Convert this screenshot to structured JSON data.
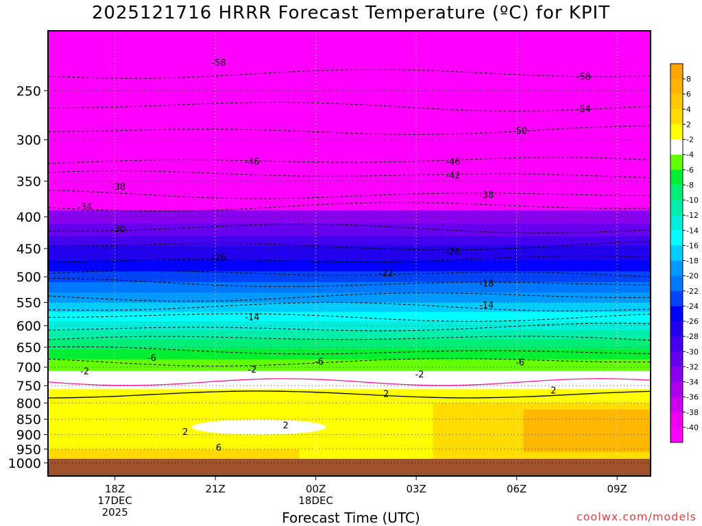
{
  "title": "2025121716 HRRR Forecast Temperature (ºC) for KPIT",
  "credit": "coolwx.com/models",
  "colors": {
    "background": "#ffffff",
    "ground": "#a0522d",
    "contour": "#000000",
    "freezing_line": "#ff1493"
  },
  "chart_data": {
    "type": "heatmap",
    "title": "2025121716 HRRR Forecast Temperature (ºC) for KPIT",
    "xlabel": "Forecast Time (UTC)",
    "ylabel": "",
    "x_unit": "hours from 2025-12-17 16Z",
    "xlim": [
      16,
      34
    ],
    "x_ticks": [
      {
        "x": 18,
        "lines": [
          "18Z",
          "17DEC",
          "2025"
        ]
      },
      {
        "x": 21,
        "lines": [
          "21Z"
        ]
      },
      {
        "x": 24,
        "lines": [
          "00Z",
          "18DEC"
        ]
      },
      {
        "x": 27,
        "lines": [
          "03Z"
        ]
      },
      {
        "x": 30,
        "lines": [
          "06Z"
        ]
      },
      {
        "x": 33,
        "lines": [
          "09Z"
        ]
      }
    ],
    "y_ticks": [
      250,
      300,
      350,
      400,
      450,
      500,
      550,
      600,
      650,
      700,
      750,
      800,
      850,
      900,
      950,
      1000
    ],
    "y_unit": "hPa",
    "grid": true,
    "colorbar": {
      "labels": [
        "8",
        "6",
        "4",
        "2",
        "-2",
        "-4",
        "-6",
        "-8",
        "-10",
        "-12",
        "-14",
        "-16",
        "-18",
        "-20",
        "-22",
        "-24",
        "-26",
        "-28",
        "-30",
        "-32",
        "-34",
        "-36",
        "-38",
        "-40"
      ],
      "colors": [
        "#ffa500",
        "#ffb400",
        "#ffc800",
        "#ffdc00",
        "#ffff00",
        "#ffffff",
        "#66ff00",
        "#00ee33",
        "#00ee77",
        "#00eeaa",
        "#00eedd",
        "#00ffff",
        "#00ccff",
        "#0099ff",
        "#0077ff",
        "#0044ff",
        "#0000ff",
        "#2200ee",
        "#4400ee",
        "#6600ee",
        "#8800ee",
        "#aa00ee",
        "#cc00ee",
        "#ee00ee",
        "#ff00ff"
      ]
    },
    "temperature_bands": [
      {
        "p_top": 200,
        "p_bottom": 390,
        "temp": -40
      },
      {
        "p_top": 390,
        "p_bottom": 410,
        "temp": -34
      },
      {
        "p_top": 410,
        "p_bottom": 430,
        "temp": -30
      },
      {
        "p_top": 430,
        "p_bottom": 445,
        "temp": -28
      },
      {
        "p_top": 445,
        "p_bottom": 470,
        "temp": -26
      },
      {
        "p_top": 470,
        "p_bottom": 490,
        "temp": -24
      },
      {
        "p_top": 490,
        "p_bottom": 510,
        "temp": -22
      },
      {
        "p_top": 510,
        "p_bottom": 530,
        "temp": -20
      },
      {
        "p_top": 530,
        "p_bottom": 550,
        "temp": -18
      },
      {
        "p_top": 550,
        "p_bottom": 570,
        "temp": -16
      },
      {
        "p_top": 570,
        "p_bottom": 590,
        "temp": -14
      },
      {
        "p_top": 590,
        "p_bottom": 610,
        "temp": -12
      },
      {
        "p_top": 610,
        "p_bottom": 630,
        "temp": -10
      },
      {
        "p_top": 630,
        "p_bottom": 655,
        "temp": -8
      },
      {
        "p_top": 655,
        "p_bottom": 680,
        "temp": -6
      },
      {
        "p_top": 680,
        "p_bottom": 710,
        "temp": -4
      },
      {
        "p_top": 710,
        "p_bottom": 760,
        "temp": 0
      },
      {
        "p_top": 760,
        "p_bottom": 1050,
        "temp": 2
      }
    ],
    "contour_labels": [
      {
        "x": 21.1,
        "p": 225,
        "text": "-58"
      },
      {
        "x": 32.0,
        "p": 237,
        "text": "-58"
      },
      {
        "x": 32.0,
        "p": 267,
        "text": "-54"
      },
      {
        "x": 30.1,
        "p": 290,
        "text": "-50"
      },
      {
        "x": 22.1,
        "p": 325,
        "text": "-46"
      },
      {
        "x": 28.1,
        "p": 325,
        "text": "-46"
      },
      {
        "x": 28.1,
        "p": 342,
        "text": "-42"
      },
      {
        "x": 18.1,
        "p": 357,
        "text": "-38"
      },
      {
        "x": 29.1,
        "p": 368,
        "text": "-38"
      },
      {
        "x": 17.1,
        "p": 385,
        "text": "-34"
      },
      {
        "x": 18.1,
        "p": 418,
        "text": "-30"
      },
      {
        "x": 21.1,
        "p": 465,
        "text": "-26"
      },
      {
        "x": 28.1,
        "p": 455,
        "text": "-26"
      },
      {
        "x": 26.1,
        "p": 492,
        "text": "-22"
      },
      {
        "x": 29.1,
        "p": 512,
        "text": "-18"
      },
      {
        "x": 22.1,
        "p": 580,
        "text": "-14"
      },
      {
        "x": 29.1,
        "p": 555,
        "text": "-14"
      },
      {
        "x": 19.1,
        "p": 675,
        "text": "-6"
      },
      {
        "x": 24.1,
        "p": 685,
        "text": "-6"
      },
      {
        "x": 30.1,
        "p": 687,
        "text": "-6"
      },
      {
        "x": 17.1,
        "p": 710,
        "text": "-2"
      },
      {
        "x": 22.1,
        "p": 705,
        "text": "-2"
      },
      {
        "x": 27.1,
        "p": 718,
        "text": "-2"
      },
      {
        "x": 26.1,
        "p": 772,
        "text": "2"
      },
      {
        "x": 31.1,
        "p": 762,
        "text": "2"
      },
      {
        "x": 23.1,
        "p": 868,
        "text": "2"
      },
      {
        "x": 20.1,
        "p": 890,
        "text": "2"
      },
      {
        "x": 21.1,
        "p": 943,
        "text": "6"
      }
    ]
  }
}
